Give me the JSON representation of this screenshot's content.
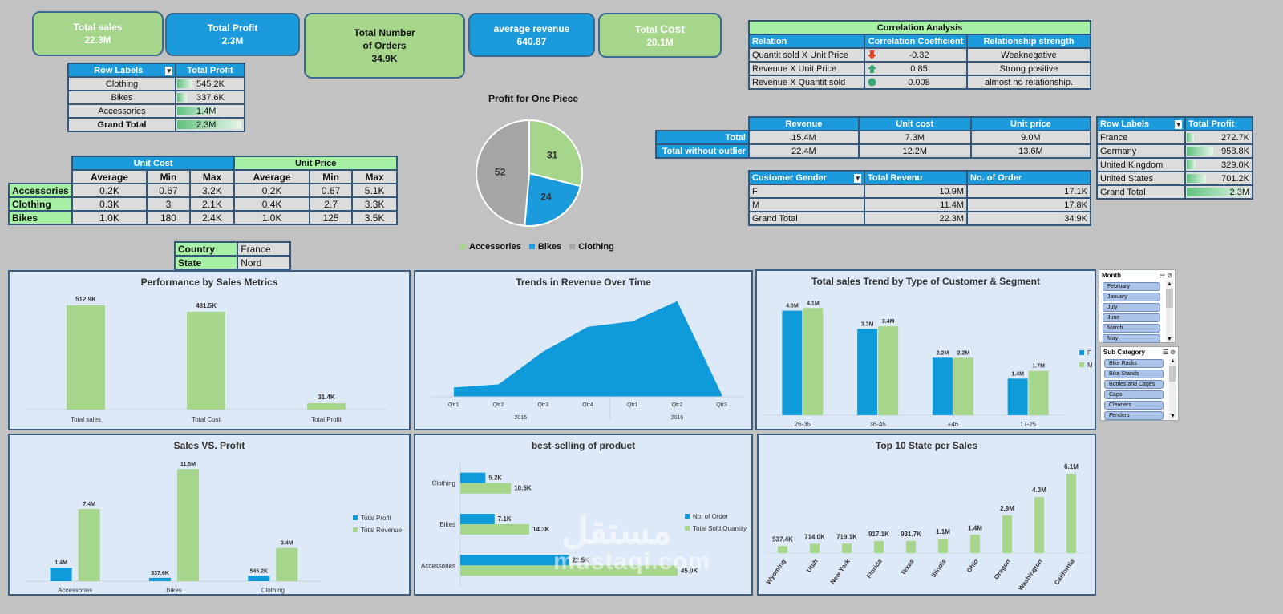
{
  "kpis": {
    "total_sales": {
      "label": "Total sales",
      "value": "22.3M"
    },
    "total_profit": {
      "label": "Total Profit",
      "value": "2.3M"
    },
    "total_orders": {
      "label1": "Total Number",
      "label2": "of Orders",
      "value": "34.9K"
    },
    "avg_revenue": {
      "label": "average revenue",
      "value": "640.87"
    },
    "total_cost": {
      "label_a": "Total ",
      "label_b": "Cost",
      "value": "20.1M"
    }
  },
  "profit_by_category": {
    "headers": [
      "Row Labels",
      "Total Profit"
    ],
    "rows": [
      {
        "label": "Clothing",
        "value": "545.2K",
        "pct": 0.24
      },
      {
        "label": "Bikes",
        "value": "337.6K",
        "pct": 0.15
      },
      {
        "label": "Accessories",
        "value": "1.4M",
        "pct": 0.61
      },
      {
        "label": "Grand Total",
        "value": "2.3M",
        "pct": 1.0
      }
    ]
  },
  "cost_price_table": {
    "group1": "Unit Cost",
    "group2": "Unit Price",
    "cols": [
      "Average",
      "Min",
      "Max",
      "Average",
      "Min",
      "Max"
    ],
    "rows": [
      {
        "label": "Accessories",
        "values": [
          "0.2K",
          "0.67",
          "3.2K",
          "0.2K",
          "0.67",
          "5.1K"
        ]
      },
      {
        "label": "Clothing",
        "values": [
          "0.3K",
          "3",
          "2.1K",
          "0.4K",
          "2.7",
          "3.3K"
        ]
      },
      {
        "label": "Bikes",
        "values": [
          "1.0K",
          "180",
          "2.4K",
          "1.0K",
          "125",
          "3.5K"
        ]
      }
    ]
  },
  "filters": [
    {
      "label": "Country",
      "value": "France"
    },
    {
      "label": "State",
      "value": "Nord"
    }
  ],
  "correlation": {
    "title": "Correlation Analysis",
    "headers": [
      "Relation",
      "Correlation Coefficient",
      "Relationship strength"
    ],
    "rows": [
      {
        "relation": "Quantit sold X Unit Price",
        "coef": "-0.32",
        "strength": "Weaknegative",
        "icon": "arrow-down-icon",
        "color": "#e0452b"
      },
      {
        "relation": "Revenue X Unit Price",
        "coef": "0.85",
        "strength": "Strong positive",
        "icon": "arrow-up-icon",
        "color": "#3aa876"
      },
      {
        "relation": "Revenue X Quantit sold",
        "coef": "0.008",
        "strength": "almost no relationship.",
        "icon": "circle-icon",
        "color": "#3aa876"
      }
    ]
  },
  "outlier_table": {
    "headers": [
      "Revenue",
      "Unit cost",
      "Unit price"
    ],
    "rows": [
      {
        "label": "Total",
        "values": [
          "15.4M",
          "7.3M",
          "9.0M"
        ]
      },
      {
        "label": "Total without outlier",
        "values": [
          "22.4M",
          "12.2M",
          "13.6M"
        ]
      }
    ]
  },
  "gender_table": {
    "headers": [
      "Customer Gender",
      "Total Revenu",
      "No. of Order"
    ],
    "rows": [
      {
        "label": "F",
        "values": [
          "10.9M",
          "17.1K"
        ]
      },
      {
        "label": "M",
        "values": [
          "11.4M",
          "17.8K"
        ]
      },
      {
        "label": "Grand Total",
        "values": [
          "22.3M",
          "34.9K"
        ]
      }
    ]
  },
  "country_profit": {
    "headers": [
      "Row Labels",
      "Total Profit"
    ],
    "rows": [
      {
        "label": "France",
        "value": "272.7K",
        "pct": 0.12
      },
      {
        "label": "Germany",
        "value": "958.8K",
        "pct": 0.42
      },
      {
        "label": "United Kingdom",
        "value": "329.0K",
        "pct": 0.14
      },
      {
        "label": "United States",
        "value": "701.2K",
        "pct": 0.31
      },
      {
        "label": "Grand Total",
        "value": "2.3M",
        "pct": 1.0
      }
    ]
  },
  "slicers": {
    "month": {
      "title": "Month",
      "items": [
        "February",
        "January",
        "July",
        "June",
        "March",
        "May"
      ]
    },
    "sub_category": {
      "title": "Sub Category",
      "items": [
        "Bike Racks",
        "Bike Stands",
        "Bottles and Cages",
        "Caps",
        "Cleaners",
        "Fenders"
      ]
    }
  },
  "watermark": "mustaqi.com",
  "chart_data": [
    {
      "id": "pie",
      "type": "pie",
      "title": "Profit for One Piece",
      "categories": [
        "Accessories",
        "Bikes",
        "Clothing"
      ],
      "values": [
        31,
        24,
        52
      ],
      "colors": [
        "#a6d68c",
        "#1c9bdc",
        "#a5a5a5"
      ],
      "legend": "bottom"
    },
    {
      "id": "perf",
      "type": "bar",
      "title": "Performance by Sales Metrics",
      "categories": [
        "Total sales",
        "Total Cost",
        "Total Profit"
      ],
      "values": [
        512.9,
        481.5,
        31.4
      ],
      "labels": [
        "512.9K",
        "481.5K",
        "31.4K"
      ],
      "ylim": [
        0,
        560
      ],
      "color": "#a6d68c"
    },
    {
      "id": "trend",
      "type": "area",
      "title": "Trends in Revenue Over Time",
      "categories": [
        "Qtr1",
        "Qtr2",
        "Qtr3",
        "Qtr4",
        "Qtr1",
        "Qtr2",
        "Qtr3"
      ],
      "groups": [
        {
          "label": "2015",
          "span": 4
        },
        {
          "label": "2016",
          "span": 3
        }
      ],
      "values": [
        12,
        16,
        58,
        90,
        97,
        123,
        3
      ],
      "ylim": [
        0,
        130
      ],
      "color": "#0f9ad9"
    },
    {
      "id": "segment",
      "type": "bar",
      "title": "Total sales Trend by Type of Customer & Segment",
      "categories": [
        "26-35",
        "36-45",
        "+46",
        "17-25"
      ],
      "series": [
        {
          "name": "F",
          "values": [
            4.0,
            3.3,
            2.2,
            1.4
          ],
          "labels": [
            "4.0M",
            "3.3M",
            "2.2M",
            "1.4M"
          ],
          "color": "#0f9ad9"
        },
        {
          "name": "M",
          "values": [
            4.1,
            3.4,
            2.2,
            1.7
          ],
          "labels": [
            "4.1M",
            "3.4M",
            "2.2M",
            "1.7M"
          ],
          "color": "#a6d68c"
        }
      ],
      "ylim": [
        0,
        4.6
      ],
      "legend": "right"
    },
    {
      "id": "salesprofit",
      "type": "bar",
      "title": "Sales VS. Profit",
      "categories": [
        "Accessories",
        "Bikes",
        "Clothing"
      ],
      "series": [
        {
          "name": "Total Profit",
          "values": [
            1.4,
            0.3376,
            0.5452
          ],
          "labels": [
            "1.4M",
            "337.6K",
            "545.2K"
          ],
          "color": "#0f9ad9"
        },
        {
          "name": "Total Revenue",
          "values": [
            7.4,
            11.5,
            3.4
          ],
          "labels": [
            "7.4M",
            "11.5M",
            "3.4M"
          ],
          "color": "#a6d68c"
        }
      ],
      "ylim": [
        0,
        12.5
      ],
      "legend": "right"
    },
    {
      "id": "bestselling",
      "type": "bar",
      "orientation": "horizontal",
      "title": "best-selling  of product",
      "categories": [
        "Clothing",
        "Bikes",
        "Accessories"
      ],
      "series": [
        {
          "name": "No. of Order",
          "values": [
            5.2,
            7.1,
            22.5
          ],
          "labels": [
            "5.2K",
            "7.1K",
            "22.5K"
          ],
          "color": "#0f9ad9"
        },
        {
          "name": "Total Sold Quantity",
          "values": [
            10.5,
            14.3,
            45.0
          ],
          "labels": [
            "10.5K",
            "14.3K",
            "45.0K"
          ],
          "color": "#a6d68c"
        }
      ],
      "xlim": [
        0,
        48
      ],
      "legend": "right"
    },
    {
      "id": "states",
      "type": "bar",
      "title": "Top 10 State per Sales",
      "categories": [
        "Wyoming",
        "Utah",
        "New York",
        "Florida",
        "Texas",
        "Illinois",
        "Ohio",
        "Oregon",
        "Washington",
        "California"
      ],
      "values": [
        0.5374,
        0.714,
        0.7191,
        0.9171,
        0.9317,
        1.1,
        1.4,
        2.9,
        4.3,
        6.1
      ],
      "labels": [
        "537.4K",
        "714.0K",
        "719.1K",
        "917.1K",
        "931.7K",
        "1.1M",
        "1.4M",
        "2.9M",
        "4.3M",
        "6.1M"
      ],
      "color": "#a6d68c"
    }
  ]
}
